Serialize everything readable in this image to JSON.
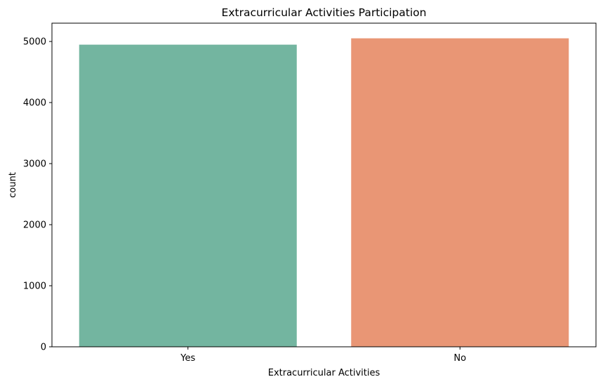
{
  "chart_data": {
    "type": "bar",
    "title": "Extracurricular Activities Participation",
    "xlabel": "Extracurricular Activities",
    "ylabel": "count",
    "categories": [
      "Yes",
      "No"
    ],
    "values": [
      4948,
      5052
    ],
    "colors": [
      "#73b5a0",
      "#e99675"
    ],
    "ylim": [
      0,
      5300
    ],
    "yticks": [
      0,
      1000,
      2000,
      3000,
      4000,
      5000
    ],
    "ytick_labels": [
      "0",
      "1000",
      "2000",
      "3000",
      "4000",
      "5000"
    ],
    "grid": false,
    "legend": false
  }
}
